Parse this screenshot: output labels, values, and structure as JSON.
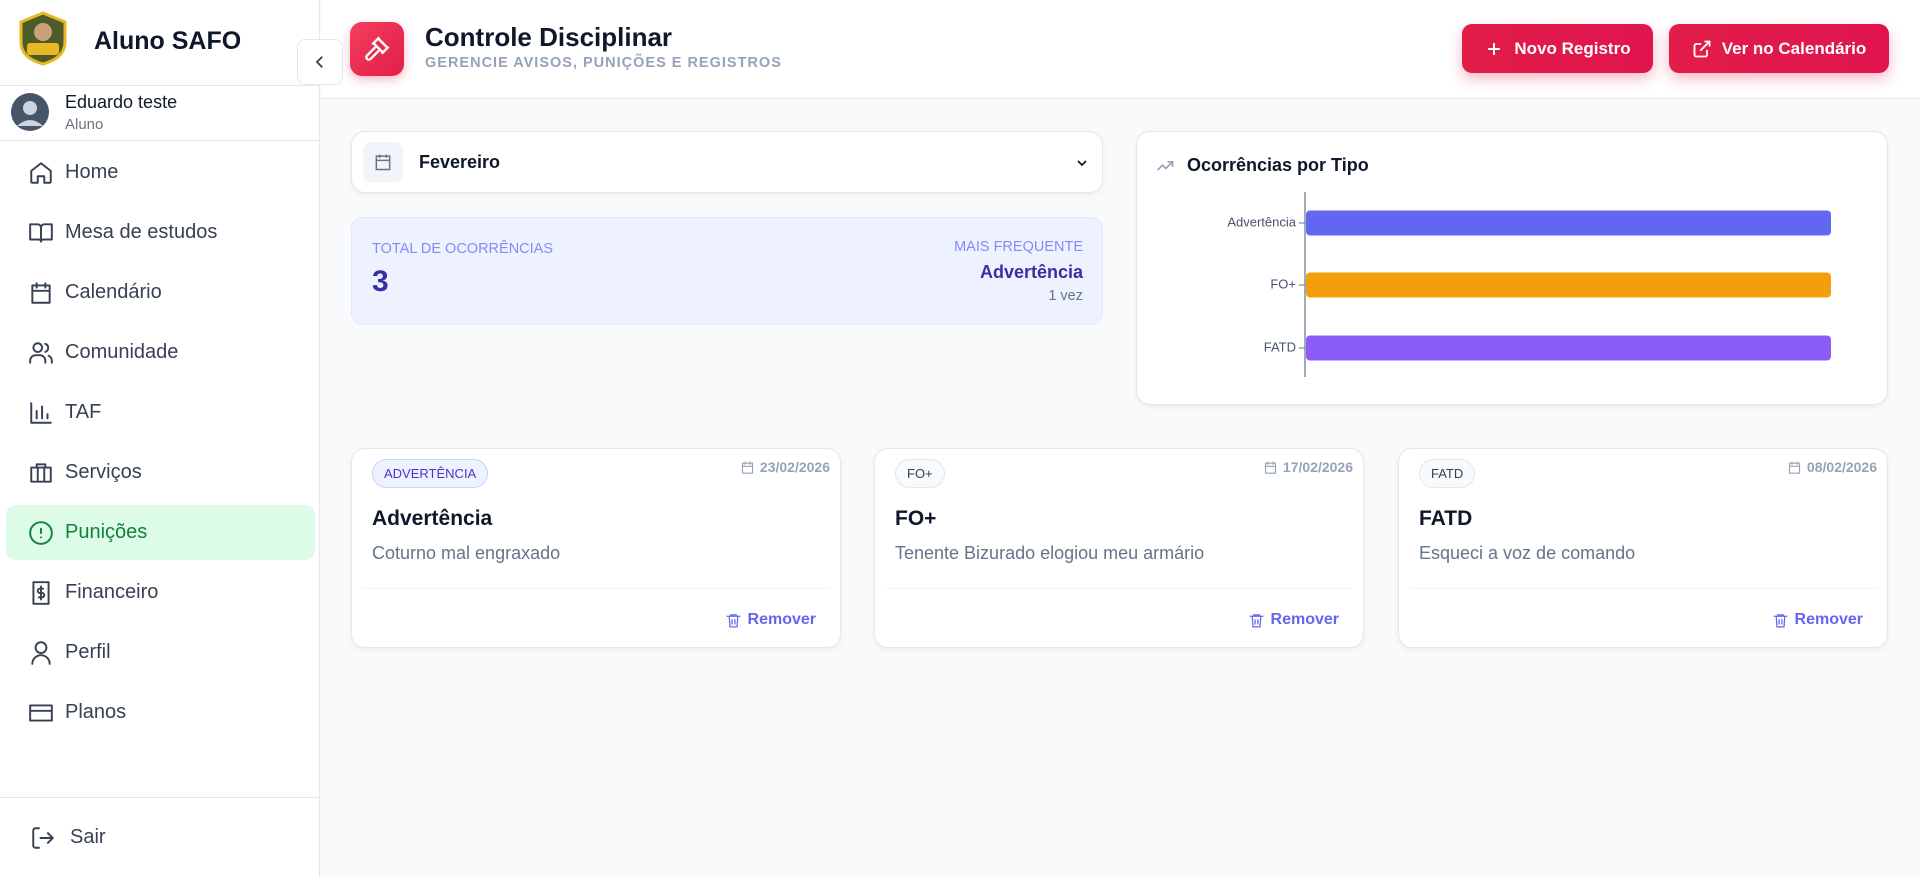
{
  "sidebar": {
    "brand": "Aluno SAFO",
    "user": {
      "name": "Eduardo teste",
      "role": "Aluno"
    },
    "nav": [
      "Home",
      "Mesa de estudos",
      "Calendário",
      "Comunidade",
      "TAF",
      "Serviços",
      "Punições",
      "Financeiro",
      "Perfil",
      "Planos"
    ],
    "logout": "Sair"
  },
  "header": {
    "title": "Controle Disciplinar",
    "subtitle": "GERENCIE AVISOS, PUNIÇÕES E REGISTROS",
    "buttons": [
      "Novo Registro",
      "Ver no Calendário"
    ]
  },
  "month_select": "Fevereiro",
  "summary": {
    "total_label": "TOTAL DE OCORRÊNCIAS",
    "total": 3,
    "frequent_label": "MAIS FREQUENTE",
    "frequent": "Advertência",
    "frequent_count": "1 vez"
  },
  "chart": {
    "type": "bar",
    "title": "Ocorrências por Tipo",
    "categories": [
      "Advertência",
      "FO+",
      "FATD"
    ],
    "values": [
      1,
      1,
      1
    ],
    "colors": [
      "#6366f1",
      "#f59e0b",
      "#8b5cf6"
    ],
    "xlim": [
      0,
      1
    ]
  },
  "cards": [
    {
      "badge": "ADVERTÊNCIA",
      "date": "23/02/2026",
      "title": "Advertência",
      "description": "Coturno mal engraxado",
      "action": "Remover"
    },
    {
      "badge": "FO+",
      "date": "17/02/2026",
      "title": "FO+",
      "description": "Tenente Bizurado elogiou meu armário",
      "action": "Remover"
    },
    {
      "badge": "FATD",
      "date": "08/02/2026",
      "title": "FATD",
      "description": "Esqueci a voz de comando",
      "action": "Remover"
    }
  ]
}
